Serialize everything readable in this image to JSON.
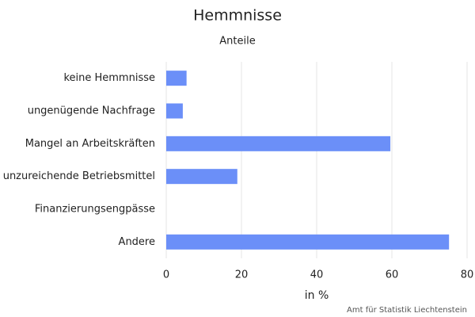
{
  "chart_data": {
    "type": "bar",
    "orientation": "horizontal",
    "title": "Hemmnisse",
    "subtitle": "Anteile",
    "categories": [
      "keine Hemmnisse",
      "ungenügende Nachfrage",
      "Mangel an Arbeitskräften",
      "unzureichende Betriebsmittel",
      "Finanzierungsengpässe",
      "Andere"
    ],
    "values": [
      5.4,
      4.4,
      59.6,
      18.9,
      0,
      75.2
    ],
    "color": "#6b8ff8",
    "xlabel": "in %",
    "xlim": [
      0,
      80
    ],
    "xticks": [
      0,
      20,
      40,
      60,
      80
    ],
    "grid": true,
    "credits": "Amt für Statistik Liechtenstein"
  }
}
